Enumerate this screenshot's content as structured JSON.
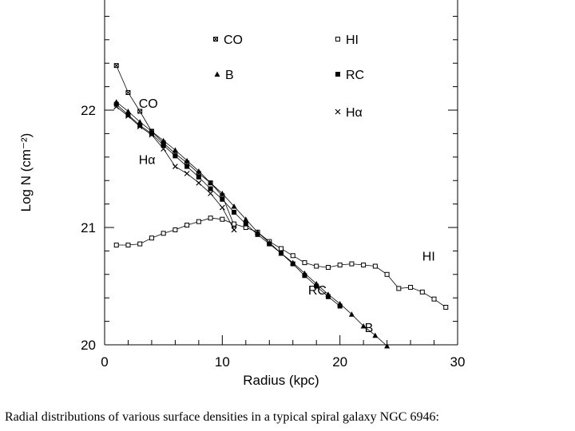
{
  "chart_data": {
    "type": "line",
    "xlabel": "Radius (kpc)",
    "ylabel": "Log N  (cm⁻²)",
    "xlim": [
      0,
      30
    ],
    "ylim": [
      20,
      23
    ],
    "xticks": [
      0,
      10,
      20,
      30
    ],
    "yticks": [
      20,
      21,
      22
    ],
    "grid": false,
    "legend_position": "top",
    "series": [
      {
        "name": "CO",
        "marker": "star-square",
        "x": [
          1,
          2,
          3,
          4,
          5,
          6,
          7,
          8,
          9,
          10,
          11
        ],
        "y": [
          22.38,
          22.15,
          21.99,
          21.82,
          21.72,
          21.63,
          21.55,
          21.46,
          21.38,
          21.27,
          21.02
        ]
      },
      {
        "name": "HI",
        "marker": "open-square",
        "x": [
          1,
          2,
          3,
          4,
          5,
          6,
          7,
          8,
          9,
          10,
          11,
          12,
          13,
          14,
          15,
          16,
          17,
          18,
          19,
          20,
          21,
          22,
          23,
          24,
          25,
          26,
          27,
          28,
          29
        ],
        "y": [
          20.85,
          20.85,
          20.86,
          20.91,
          20.95,
          20.98,
          21.02,
          21.05,
          21.08,
          21.07,
          21.03,
          21.0,
          20.96,
          20.88,
          20.82,
          20.76,
          20.7,
          20.67,
          20.66,
          20.68,
          20.69,
          20.68,
          20.67,
          20.6,
          20.48,
          20.49,
          20.45,
          20.39,
          20.32
        ]
      },
      {
        "name": "B",
        "marker": "filled-triangle",
        "x": [
          1,
          2,
          3,
          4,
          5,
          6,
          7,
          8,
          9,
          10,
          11,
          12,
          13,
          14,
          15,
          16,
          17,
          18,
          19,
          20,
          21,
          22,
          23,
          24
        ],
        "y": [
          22.07,
          21.99,
          21.9,
          21.82,
          21.74,
          21.66,
          21.57,
          21.48,
          21.38,
          21.29,
          21.18,
          21.07,
          20.96,
          20.87,
          20.78,
          20.7,
          20.61,
          20.52,
          20.43,
          20.35,
          20.26,
          20.16,
          20.08,
          19.99
        ]
      },
      {
        "name": "RC",
        "marker": "filled-square",
        "x": [
          1,
          2,
          3,
          4,
          5,
          6,
          7,
          8,
          9,
          10,
          11,
          12,
          13,
          14,
          15,
          16,
          17,
          18,
          19,
          20
        ],
        "y": [
          22.05,
          21.96,
          21.87,
          21.8,
          21.7,
          21.61,
          21.52,
          21.43,
          21.33,
          21.24,
          21.13,
          21.03,
          20.94,
          20.86,
          20.78,
          20.69,
          20.59,
          20.5,
          20.41,
          20.33
        ]
      },
      {
        "name": "Hα",
        "marker": "cross",
        "x": [
          1,
          2,
          3,
          4,
          5,
          6,
          7,
          8,
          9,
          10,
          11
        ],
        "y": [
          22.03,
          21.95,
          21.86,
          21.79,
          21.67,
          21.52,
          21.46,
          21.38,
          21.29,
          21.17,
          20.98
        ]
      }
    ],
    "annotations": [
      {
        "text": "CO",
        "x": 2.9,
        "y": 22.06
      },
      {
        "text": "Hα",
        "x": 2.9,
        "y": 21.58
      },
      {
        "text": "HI",
        "x": 27.0,
        "y": 20.76
      },
      {
        "text": "RC",
        "x": 17.3,
        "y": 20.47
      },
      {
        "text": "B",
        "x": 22.1,
        "y": 20.15
      }
    ]
  },
  "caption": "Radial distributions of various surface densities in a typical spiral galaxy NGC 6946:"
}
